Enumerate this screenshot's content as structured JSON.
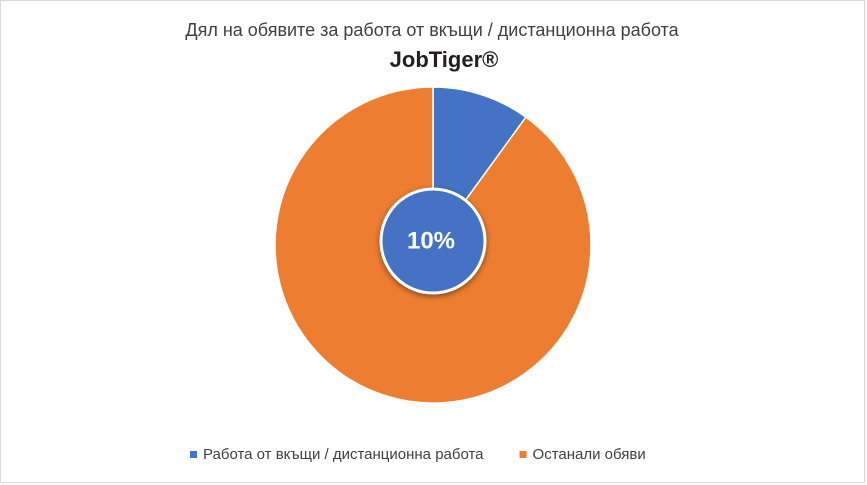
{
  "chart_data": {
    "type": "pie",
    "title": "Дял на обявите за работа от вкъщи / дистанционна работа",
    "subtitle": "JobTiger®",
    "categories": [
      "Работа от вкъщи / дистанционна работа",
      "Останали обяви"
    ],
    "values": [
      10,
      90
    ],
    "value_labels": [
      "10%",
      null
    ],
    "colors": [
      "#4472c4",
      "#ed7d31"
    ],
    "legend": "bottom"
  }
}
